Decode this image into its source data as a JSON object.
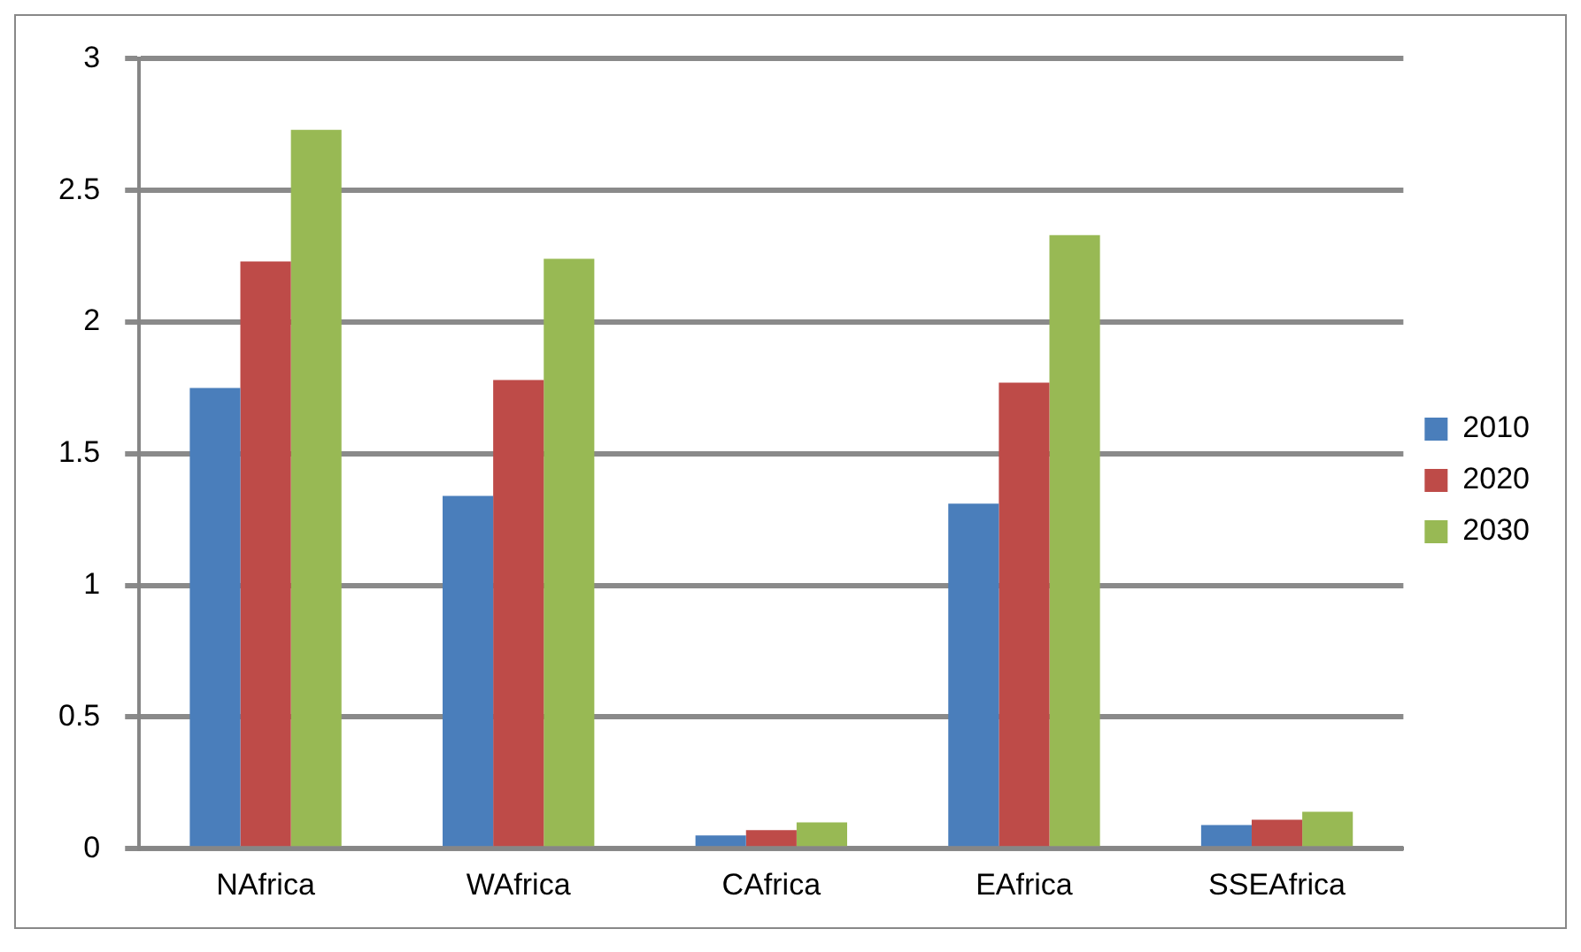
{
  "chart_data": {
    "type": "bar",
    "categories": [
      "NAfrica",
      "WAfrica",
      "CAfrica",
      "EAfrica",
      "SSEAfrica"
    ],
    "series": [
      {
        "name": "2010",
        "color": "#4a7ebb",
        "values": [
          1.75,
          1.34,
          0.05,
          1.31,
          0.09
        ]
      },
      {
        "name": "2020",
        "color": "#be4b48",
        "values": [
          2.23,
          1.78,
          0.07,
          1.77,
          0.11
        ]
      },
      {
        "name": "2030",
        "color": "#98b954",
        "values": [
          2.73,
          2.24,
          0.1,
          2.33,
          0.14
        ]
      }
    ],
    "ylim": [
      0,
      3
    ],
    "yticks": [
      0,
      0.5,
      1,
      1.5,
      2,
      2.5,
      3
    ],
    "grid": "y",
    "legend": "right"
  }
}
